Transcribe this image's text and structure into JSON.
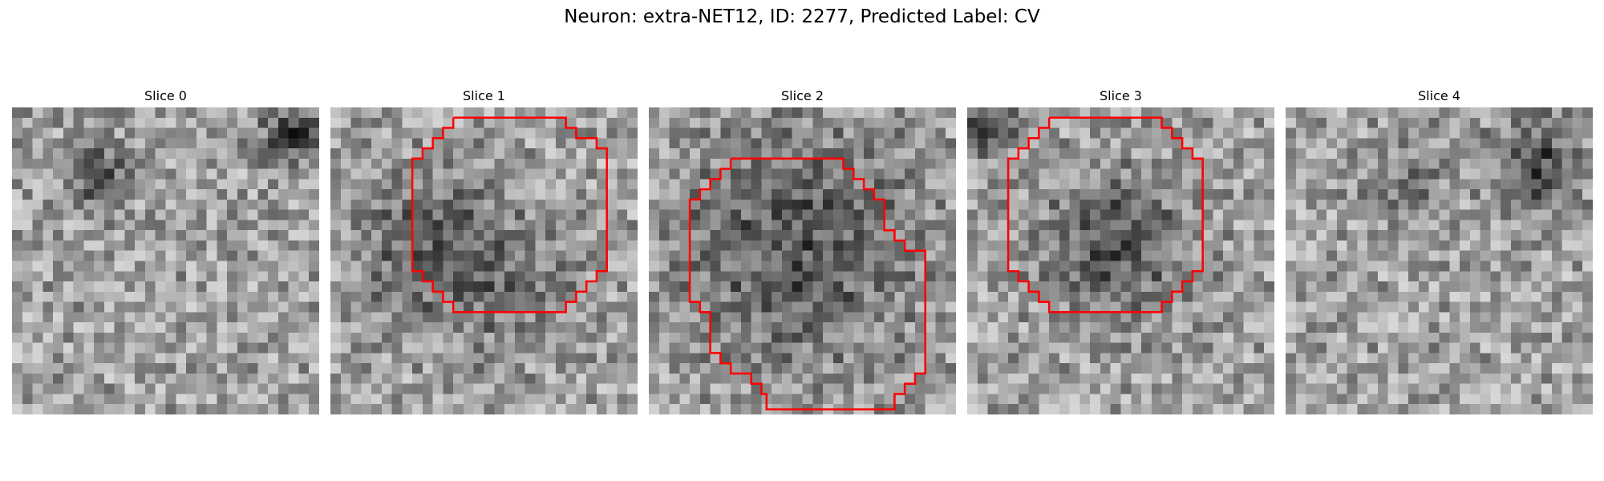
{
  "title": "Neuron: extra-NET12, ID: 2277, Predicted Label: CV",
  "grid_size": 30,
  "outline_color": "#ff0000",
  "slices": [
    {
      "label": "Slice 0",
      "dark_blobs": [
        [
          8,
          6,
          2,
          0.35
        ],
        [
          27,
          2,
          2,
          0.4
        ]
      ],
      "outline": null
    },
    {
      "label": "Slice 1",
      "dark_blobs": [
        [
          9,
          13,
          5,
          0.25
        ],
        [
          17,
          17,
          5,
          0.15
        ]
      ],
      "outline": [
        [
          12,
          1
        ],
        [
          23,
          1
        ],
        [
          23,
          2
        ],
        [
          24,
          2
        ],
        [
          24,
          3
        ],
        [
          26,
          3
        ],
        [
          26,
          4
        ],
        [
          27,
          4
        ],
        [
          27,
          16
        ],
        [
          26,
          16
        ],
        [
          26,
          17
        ],
        [
          25,
          17
        ],
        [
          25,
          18
        ],
        [
          24,
          18
        ],
        [
          24,
          19
        ],
        [
          23,
          19
        ],
        [
          23,
          20
        ],
        [
          12,
          20
        ],
        [
          12,
          19
        ],
        [
          11,
          19
        ],
        [
          11,
          18
        ],
        [
          10,
          18
        ],
        [
          10,
          17
        ],
        [
          9,
          17
        ],
        [
          9,
          16
        ],
        [
          8,
          16
        ],
        [
          8,
          5
        ],
        [
          9,
          5
        ],
        [
          9,
          4
        ],
        [
          10,
          4
        ],
        [
          10,
          3
        ],
        [
          11,
          3
        ],
        [
          11,
          2
        ],
        [
          12,
          2
        ],
        [
          12,
          1
        ]
      ]
    },
    {
      "label": "Slice 2",
      "dark_blobs": [
        [
          14,
          13,
          8,
          0.3
        ]
      ],
      "outline": [
        [
          8,
          5
        ],
        [
          19,
          5
        ],
        [
          19,
          6
        ],
        [
          20,
          6
        ],
        [
          20,
          7
        ],
        [
          21,
          7
        ],
        [
          21,
          8
        ],
        [
          22,
          8
        ],
        [
          22,
          9
        ],
        [
          23,
          9
        ],
        [
          23,
          12
        ],
        [
          24,
          12
        ],
        [
          24,
          13
        ],
        [
          25,
          13
        ],
        [
          25,
          14
        ],
        [
          27,
          14
        ],
        [
          27,
          26
        ],
        [
          26,
          26
        ],
        [
          26,
          27
        ],
        [
          25,
          27
        ],
        [
          25,
          28
        ],
        [
          24,
          28
        ],
        [
          24,
          29.5
        ],
        [
          11.5,
          29.5
        ],
        [
          11.5,
          28
        ],
        [
          11,
          28
        ],
        [
          11,
          27
        ],
        [
          10,
          27
        ],
        [
          10,
          26
        ],
        [
          8,
          26
        ],
        [
          8,
          25
        ],
        [
          7,
          25
        ],
        [
          7,
          24
        ],
        [
          6,
          24
        ],
        [
          6,
          20
        ],
        [
          5,
          20
        ],
        [
          5,
          19
        ],
        [
          4,
          19
        ],
        [
          4,
          9
        ],
        [
          5,
          9
        ],
        [
          5,
          8
        ],
        [
          6,
          8
        ],
        [
          6,
          7
        ],
        [
          7,
          7
        ],
        [
          7,
          6
        ],
        [
          8,
          6
        ],
        [
          8,
          5
        ]
      ]
    },
    {
      "label": "Slice 3",
      "dark_blobs": [
        [
          14,
          13,
          5,
          0.3
        ],
        [
          1,
          1,
          2,
          0.4
        ]
      ],
      "outline": [
        [
          8,
          1
        ],
        [
          19,
          1
        ],
        [
          19,
          2
        ],
        [
          20,
          2
        ],
        [
          20,
          3
        ],
        [
          21,
          3
        ],
        [
          21,
          4
        ],
        [
          22,
          4
        ],
        [
          22,
          5
        ],
        [
          23,
          5
        ],
        [
          23,
          16
        ],
        [
          22,
          16
        ],
        [
          22,
          17
        ],
        [
          21,
          17
        ],
        [
          21,
          18
        ],
        [
          20,
          18
        ],
        [
          20,
          19
        ],
        [
          19,
          19
        ],
        [
          19,
          20
        ],
        [
          8,
          20
        ],
        [
          8,
          19
        ],
        [
          7,
          19
        ],
        [
          7,
          18
        ],
        [
          6,
          18
        ],
        [
          6,
          17
        ],
        [
          5,
          17
        ],
        [
          5,
          16
        ],
        [
          4,
          16
        ],
        [
          4,
          5
        ],
        [
          5,
          5
        ],
        [
          5,
          4
        ],
        [
          6,
          4
        ],
        [
          6,
          3
        ],
        [
          7,
          3
        ],
        [
          7,
          2
        ],
        [
          8,
          2
        ],
        [
          8,
          1
        ]
      ]
    },
    {
      "label": "Slice 4",
      "dark_blobs": [
        [
          24,
          5,
          3,
          0.35
        ],
        [
          11,
          7,
          3,
          0.15
        ]
      ],
      "outline": null
    }
  ]
}
